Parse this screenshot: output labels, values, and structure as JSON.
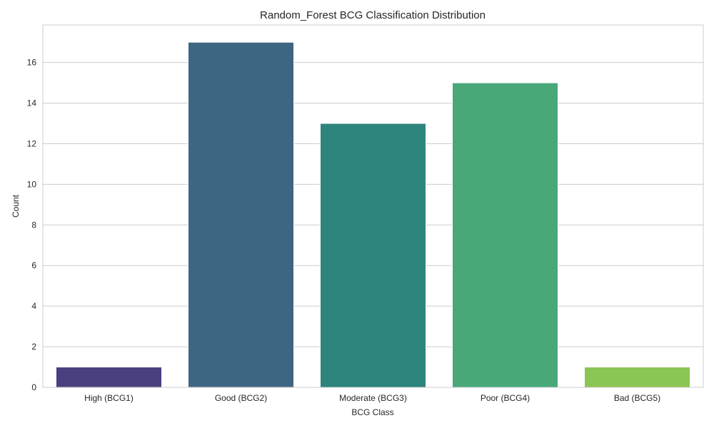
{
  "chart_data": {
    "type": "bar",
    "title": "Random_Forest BCG Classification Distribution",
    "xlabel": "BCG Class",
    "ylabel": "Count",
    "categories": [
      "High (BCG1)",
      "Good (BCG2)",
      "Moderate (BCG3)",
      "Poor (BCG4)",
      "Bad (BCG5)"
    ],
    "values": [
      1,
      17,
      13,
      15,
      1
    ],
    "colors": [
      "#4a3f7f",
      "#3d6682",
      "#2e857d",
      "#48a878",
      "#8bc553"
    ],
    "ylim": [
      0,
      17.85
    ],
    "yticks": [
      0,
      2,
      4,
      6,
      8,
      10,
      12,
      14,
      16
    ],
    "grid": true,
    "legend": "none"
  }
}
